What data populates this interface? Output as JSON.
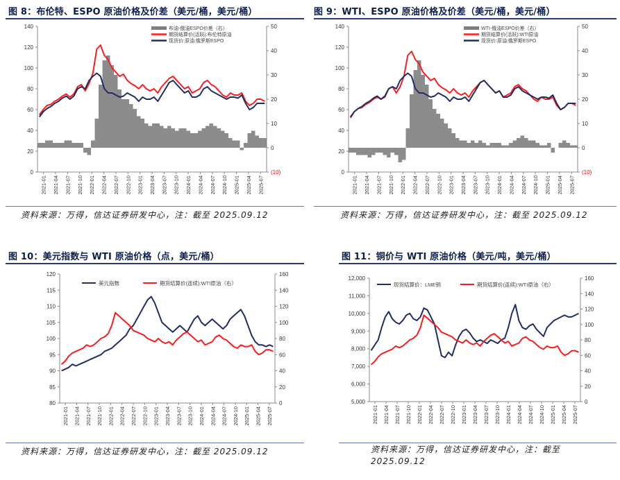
{
  "panels": [
    {
      "title": "图 8：布伦特、ESPO 原油价格及价差（美元/桶，美元/桶）",
      "source": "资料来源：万得，信达证券研发中心，注：截至 2025.09.12"
    },
    {
      "title": "图 9：WTI、ESPO 原油价格及价差（美元/桶，美元/桶）",
      "source": "资料来源：万得，信达证券研发中心，注：截至 2025.09.12"
    },
    {
      "title": "图 10：美元指数与 WTI 原油价格（点，美元/桶）",
      "source": "资料来源：万得，信达证券研发中心，注：截至 2025.09.12"
    },
    {
      "title": "图 11：铜价与 WTI 原油价格（美元/吨，美元/桶）",
      "source": "资料来源：万得，信达证券研发中心，注：截至 2025.09.12"
    }
  ],
  "colors": {
    "navy": "#1f2d63",
    "red": "#ff1a1a",
    "gray": "#808080",
    "title": "#0b1f4e"
  },
  "chart_data": [
    {
      "type": "line",
      "x_tick_labels": [
        "2021-01",
        "2021-04",
        "2021-07",
        "2021-10",
        "2022-01",
        "2022-04",
        "2022-07",
        "2022-10",
        "2023-01",
        "2023-04",
        "2023-07",
        "2023-10",
        "2024-01",
        "2024-04",
        "2024-07",
        "2024-10",
        "2025-01",
        "2025-04",
        "2025-07"
      ],
      "y_left_ticks": [
        "0",
        "20",
        "40",
        "60",
        "80",
        "100",
        "120",
        "140"
      ],
      "y_right_ticks": [
        "(10)",
        "0",
        "10",
        "20",
        "30",
        "40",
        "50"
      ],
      "ylim_left": [
        0,
        140
      ],
      "ylim_right": [
        -10,
        50
      ],
      "legend": "top-right",
      "series": [
        {
          "name": "布油-俄油ESPO价差（右）",
          "type": "bar",
          "axis": "right",
          "color": "#808080",
          "values": [
            2,
            2,
            3,
            3,
            2,
            2,
            2,
            3,
            3,
            2,
            2,
            2,
            -2,
            -3,
            3,
            12,
            26,
            36,
            38,
            34,
            30,
            24,
            20,
            20,
            18,
            16,
            13,
            12,
            10,
            9,
            10,
            10,
            9,
            8,
            9,
            8,
            7,
            8,
            8,
            7,
            6,
            6,
            7,
            8,
            9,
            10,
            9,
            8,
            7,
            6,
            4,
            3,
            3,
            -1,
            2,
            6,
            7,
            5,
            4,
            4
          ]
        },
        {
          "name": "期货结算价(活跃):布伦特原油",
          "type": "line",
          "axis": "left",
          "color": "#ff1a1a",
          "values": [
            55,
            60,
            64,
            65,
            68,
            70,
            73,
            75,
            72,
            75,
            82,
            84,
            78,
            85,
            95,
            118,
            122,
            112,
            108,
            100,
            96,
            92,
            94,
            88,
            85,
            83,
            80,
            84,
            80,
            78,
            80,
            76,
            82,
            86,
            90,
            92,
            88,
            84,
            80,
            82,
            76,
            78,
            80,
            86,
            88,
            84,
            82,
            78,
            74,
            72,
            76,
            74,
            74,
            76,
            68,
            64,
            66,
            70,
            70,
            68
          ]
        },
        {
          "name": "现货价:原油:俄罗斯ESPO",
          "type": "line",
          "axis": "left",
          "color": "#1f2d63",
          "values": [
            53,
            58,
            61,
            63,
            66,
            68,
            71,
            73,
            70,
            73,
            80,
            82,
            80,
            88,
            92,
            95,
            92,
            80,
            76,
            76,
            74,
            72,
            73,
            76,
            74,
            72,
            68,
            72,
            70,
            70,
            72,
            68,
            74,
            80,
            86,
            88,
            84,
            80,
            76,
            78,
            72,
            72,
            74,
            80,
            82,
            78,
            76,
            74,
            72,
            70,
            72,
            72,
            71,
            74,
            66,
            60,
            62,
            66,
            66,
            66
          ]
        }
      ]
    },
    {
      "type": "line",
      "x_tick_labels": [
        "2021-01",
        "2021-04",
        "2021-07",
        "2021-10",
        "2022-01",
        "2022-04",
        "2022-07",
        "2022-10",
        "2023-01",
        "2023-04",
        "2023-07",
        "2023-10",
        "2024-01",
        "2024-04",
        "2024-07",
        "2024-10",
        "2025-01",
        "2025-04",
        "2025-07"
      ],
      "y_left_ticks": [
        "0",
        "20",
        "40",
        "60",
        "80",
        "100",
        "120",
        "140"
      ],
      "y_right_ticks": [
        "(10)",
        "0",
        "10",
        "20",
        "30",
        "40",
        "50"
      ],
      "ylim_left": [
        0,
        140
      ],
      "ylim_right": [
        -10,
        50
      ],
      "legend": "top-right",
      "series": [
        {
          "name": "WTI-俄油ESPO价差（右）",
          "type": "bar",
          "axis": "right",
          "color": "#808080",
          "values": [
            -2,
            -2,
            -3,
            -3,
            -3,
            -4,
            -3,
            -2,
            -2,
            -3,
            -4,
            -2,
            -3,
            -6,
            -5,
            8,
            22,
            32,
            36,
            30,
            26,
            20,
            16,
            14,
            12,
            10,
            8,
            6,
            4,
            3,
            3,
            2,
            3,
            2,
            3,
            2,
            1,
            2,
            2,
            2,
            1,
            1,
            2,
            3,
            4,
            5,
            4,
            3,
            3,
            2,
            1,
            1,
            2,
            -2,
            0,
            2,
            3,
            2,
            1,
            1
          ]
        },
        {
          "name": "期货结算价(活跃):WTI原油",
          "type": "line",
          "axis": "left",
          "color": "#ff1a1a",
          "values": [
            52,
            58,
            61,
            62,
            65,
            67,
            70,
            72,
            70,
            72,
            80,
            82,
            76,
            82,
            92,
            112,
            116,
            108,
            104,
            96,
            92,
            88,
            90,
            84,
            81,
            79,
            76,
            80,
            76,
            74,
            76,
            72,
            78,
            82,
            86,
            88,
            84,
            80,
            76,
            78,
            72,
            74,
            76,
            82,
            84,
            80,
            78,
            74,
            70,
            68,
            72,
            70,
            70,
            72,
            64,
            60,
            62,
            66,
            66,
            64
          ]
        },
        {
          "name": "现货价:原油:俄罗斯ESPO",
          "type": "line",
          "axis": "left",
          "color": "#1f2d63",
          "values": [
            53,
            58,
            61,
            63,
            66,
            68,
            71,
            73,
            70,
            73,
            80,
            82,
            80,
            88,
            92,
            95,
            92,
            80,
            76,
            76,
            74,
            72,
            73,
            76,
            74,
            72,
            68,
            72,
            70,
            70,
            72,
            68,
            74,
            80,
            86,
            88,
            84,
            80,
            76,
            78,
            72,
            72,
            74,
            80,
            82,
            78,
            76,
            74,
            72,
            70,
            72,
            72,
            71,
            74,
            66,
            60,
            62,
            66,
            66,
            66
          ]
        }
      ]
    },
    {
      "type": "line",
      "x_tick_labels": [
        "2021-01",
        "2021-04",
        "2021-07",
        "2021-10",
        "2022-01",
        "2022-04",
        "2022-07",
        "2022-10",
        "2023-01",
        "2023-04",
        "2023-07",
        "2023-10",
        "2024-01",
        "2024-04",
        "2024-07",
        "2024-10",
        "2025-01",
        "2025-04",
        "2025-07"
      ],
      "y_left_ticks": [
        "80",
        "85",
        "90",
        "95",
        "100",
        "105",
        "110",
        "115",
        "120"
      ],
      "y_right_ticks": [
        "0",
        "20",
        "40",
        "60",
        "80",
        "100",
        "120",
        "140",
        "160"
      ],
      "ylim_left": [
        80,
        120
      ],
      "ylim_right": [
        0,
        160
      ],
      "legend": "top",
      "series": [
        {
          "name": "美元指数",
          "type": "line",
          "axis": "left",
          "color": "#1f2d63",
          "values": [
            90,
            90.5,
            91,
            92,
            91.5,
            92,
            92.5,
            93,
            93.5,
            94,
            94.5,
            95,
            96,
            96.5,
            97,
            98,
            99,
            100,
            101,
            103,
            104,
            106,
            108,
            110,
            112,
            113,
            111,
            108,
            105,
            104,
            103,
            102,
            103,
            104,
            103,
            102,
            104,
            106,
            107,
            105,
            104,
            105,
            106,
            105,
            104,
            103,
            104,
            106,
            107,
            108,
            109,
            107,
            104,
            101,
            99,
            98,
            98,
            97.5,
            98,
            97.5
          ]
        },
        {
          "name": "期货结算价(连续):WTI原油（右）",
          "type": "line",
          "axis": "right",
          "color": "#ff1a1a",
          "values": [
            48,
            52,
            58,
            62,
            64,
            66,
            68,
            72,
            70,
            72,
            76,
            80,
            82,
            86,
            96,
            112,
            108,
            104,
            100,
            96,
            90,
            88,
            86,
            84,
            80,
            78,
            76,
            80,
            76,
            74,
            76,
            72,
            78,
            82,
            86,
            88,
            84,
            80,
            76,
            78,
            72,
            74,
            76,
            82,
            84,
            80,
            78,
            74,
            70,
            68,
            72,
            70,
            70,
            72,
            64,
            60,
            62,
            66,
            66,
            64
          ]
        }
      ]
    },
    {
      "type": "line",
      "x_tick_labels": [
        "2021-01",
        "2021-04",
        "2021-07",
        "2021-10",
        "2022-01",
        "2022-04",
        "2022-07",
        "2022-10",
        "2023-01",
        "2023-04",
        "2023-07",
        "2023-10",
        "2024-01",
        "2024-04",
        "2024-07",
        "2024-10",
        "2025-01",
        "2025-04",
        "2025-07"
      ],
      "y_left_ticks": [
        "5,000",
        "6,000",
        "7,000",
        "8,000",
        "9,000",
        "10,000",
        "11,000",
        "12,000"
      ],
      "y_right_ticks": [
        "0",
        "20",
        "40",
        "60",
        "80",
        "100",
        "120",
        "140",
        "160"
      ],
      "ylim_left": [
        5000,
        12000
      ],
      "ylim_right": [
        0,
        160
      ],
      "legend": "top",
      "series": [
        {
          "name": "现货结算价：LME铜",
          "type": "line",
          "axis": "left",
          "color": "#1f2d63",
          "values": [
            7900,
            8200,
            8500,
            9200,
            9800,
            10100,
            9700,
            9500,
            9400,
            9600,
            9900,
            10000,
            9700,
            9600,
            9800,
            10300,
            10200,
            9800,
            9400,
            8500,
            7600,
            7500,
            7800,
            7600,
            8200,
            8700,
            9000,
            9100,
            8900,
            8600,
            8400,
            8500,
            8400,
            8300,
            8500,
            8400,
            8300,
            8500,
            8600,
            9200,
            10000,
            10500,
            9600,
            9200,
            9100,
            9300,
            9400,
            9100,
            8900,
            8700,
            9200,
            9400,
            9600,
            9700,
            9800,
            9900,
            9800,
            9800,
            9900,
            10000
          ]
        },
        {
          "name": "期货结算价(连续):WTI原油（右）",
          "type": "line",
          "axis": "right",
          "color": "#ff1a1a",
          "values": [
            48,
            52,
            58,
            62,
            64,
            66,
            68,
            72,
            70,
            72,
            76,
            80,
            82,
            86,
            96,
            112,
            108,
            104,
            100,
            96,
            90,
            88,
            86,
            84,
            80,
            78,
            76,
            80,
            76,
            74,
            76,
            72,
            78,
            82,
            86,
            88,
            84,
            80,
            76,
            78,
            72,
            74,
            76,
            82,
            84,
            80,
            78,
            74,
            70,
            68,
            72,
            70,
            70,
            72,
            64,
            60,
            62,
            66,
            66,
            64
          ]
        }
      ]
    }
  ]
}
